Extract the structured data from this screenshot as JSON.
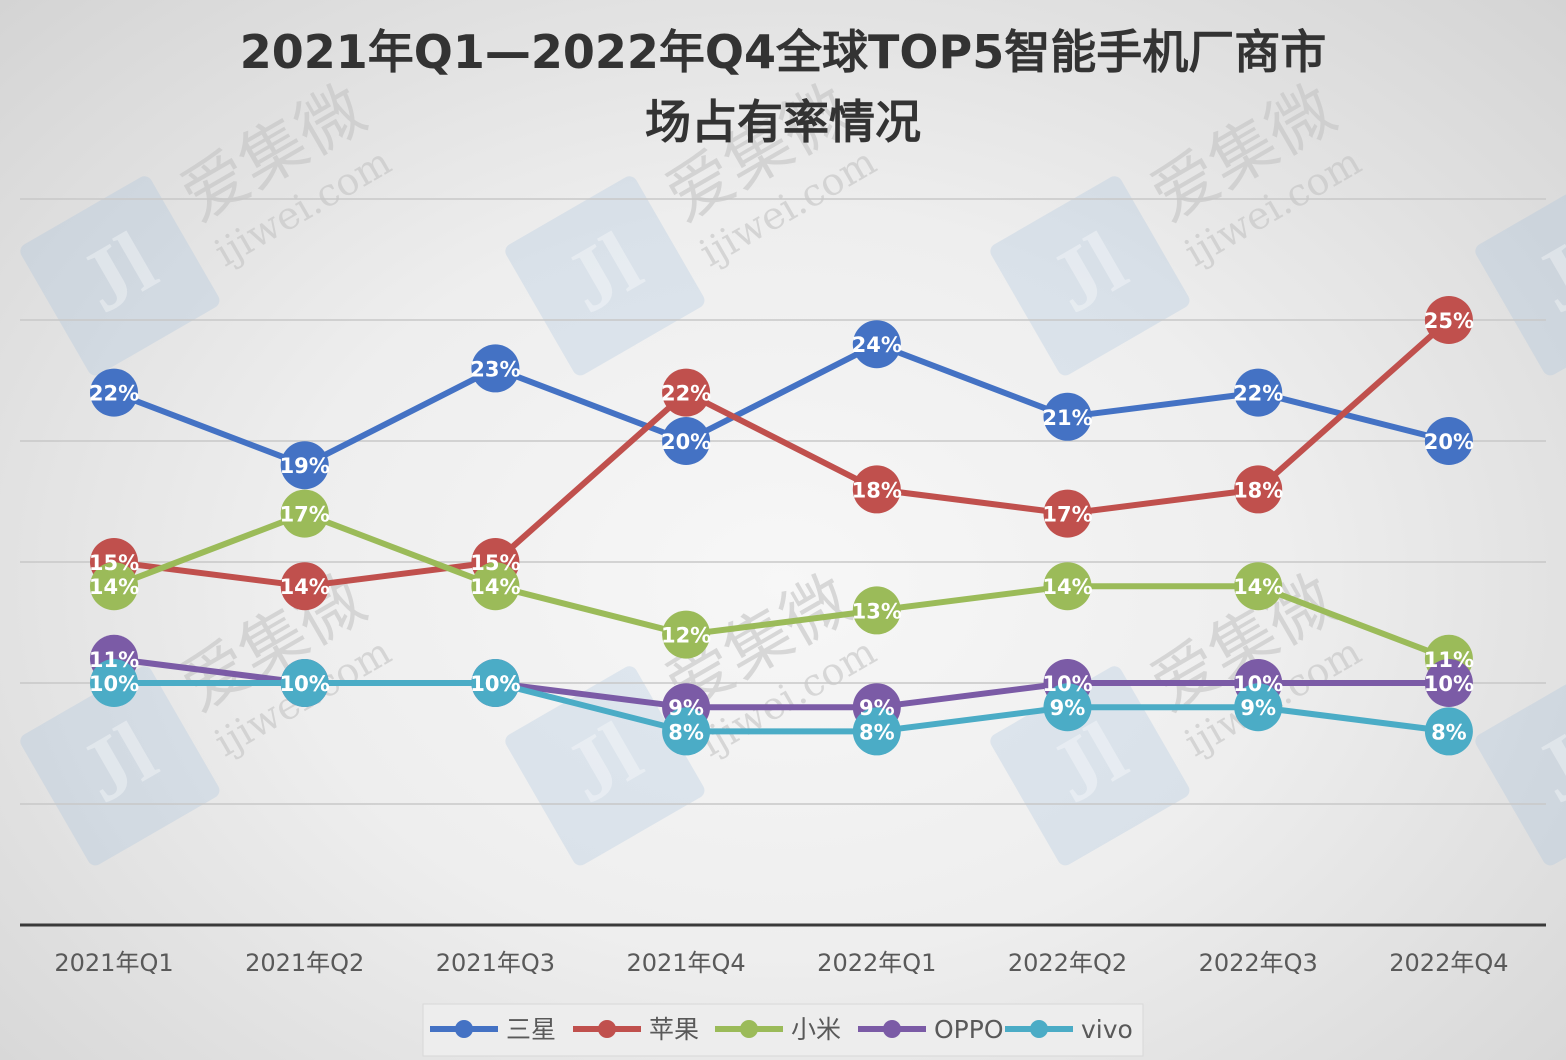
{
  "chart_data": {
    "type": "line",
    "title_lines": [
      "2021年Q1—2022年Q4全球TOP5智能手机厂商市",
      "场占有率情况"
    ],
    "xlabel": "",
    "ylabel": "",
    "ylim": [
      0,
      30
    ],
    "gridlines": true,
    "legend_position": "bottom",
    "categories": [
      "2021年Q1",
      "2021年Q2",
      "2021年Q3",
      "2021年Q4",
      "2022年Q1",
      "2022年Q2",
      "2022年Q3",
      "2022年Q4"
    ],
    "series": [
      {
        "name": "三星",
        "color": "#4472C4",
        "values": [
          22,
          19,
          23,
          20,
          24,
          21,
          22,
          20
        ],
        "labels": [
          "22%",
          "19%",
          "23%",
          "20%",
          "24%",
          "21%",
          "22%",
          "20%"
        ]
      },
      {
        "name": "苹果",
        "color": "#C0504D",
        "values": [
          15,
          14,
          15,
          22,
          18,
          17,
          18,
          25
        ],
        "labels": [
          "15%",
          "14%",
          "15%",
          "22%",
          "18%",
          "17%",
          "18%",
          "25%"
        ]
      },
      {
        "name": "小米",
        "color": "#9BBB59",
        "values": [
          14,
          17,
          14,
          12,
          13,
          14,
          14,
          11
        ],
        "labels": [
          "14%",
          "17%",
          "14%",
          "12%",
          "13%",
          "14%",
          "14%",
          "11%"
        ]
      },
      {
        "name": "OPPO",
        "color": "#7B5BA6",
        "values": [
          11,
          10,
          10,
          9,
          9,
          10,
          10,
          10
        ],
        "labels": [
          "11%",
          "10%",
          "10%",
          "9%",
          "9%",
          "10%",
          "10%",
          "10%"
        ]
      },
      {
        "name": "vivo",
        "color": "#4BACC6",
        "values": [
          10,
          10,
          10,
          8,
          8,
          9,
          9,
          8
        ],
        "labels": [
          "10%",
          "10%",
          "10%",
          "8%",
          "8%",
          "9%",
          "9%",
          "8%"
        ]
      }
    ]
  },
  "watermark": {
    "brand": "爱集微",
    "url": "ijiwei.com",
    "mark": "Jl"
  }
}
